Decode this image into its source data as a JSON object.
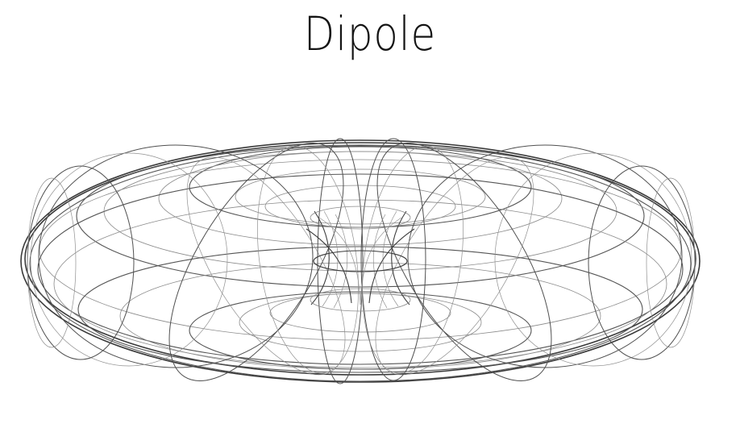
{
  "title": "Dipole",
  "colors": {
    "background": "#ffffff",
    "lines": "#3a3a3a",
    "title": "#141414"
  }
}
